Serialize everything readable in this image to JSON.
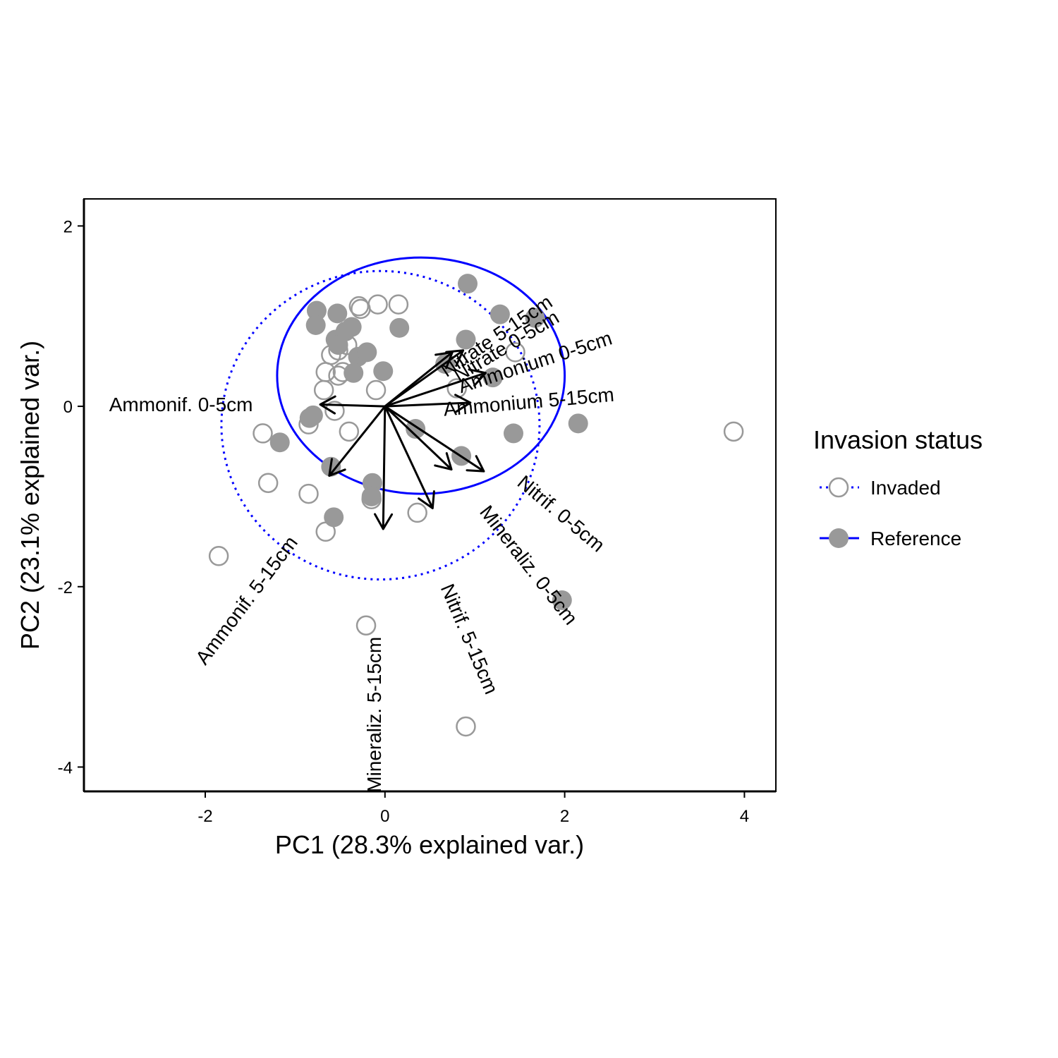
{
  "chart_data": {
    "type": "scatter",
    "subtype": "PCA biplot",
    "xlabel": "PC1 (28.3% explained var.)",
    "ylabel": "PC2 (23.1% explained var.)",
    "xlim": [
      -3.35,
      4.35
    ],
    "ylim": [
      -4.27,
      2.3
    ],
    "xticks": [
      -2,
      0,
      2,
      4
    ],
    "xtick_labels": [
      "-2",
      "0",
      "2",
      "4"
    ],
    "yticks": [
      -4,
      -2,
      0,
      2
    ],
    "ytick_labels": [
      "-4",
      "-2",
      "0",
      "2"
    ],
    "grid": false,
    "legend": {
      "title": "Invasion status",
      "placement": "right",
      "entries": [
        "Invaded",
        "Reference"
      ]
    },
    "series": [
      {
        "name": "Invaded",
        "marker": "open-circle",
        "color": "#999999",
        "ellipse_color": "#0000ff",
        "ellipse_line": "dotted",
        "ellipse": {
          "cx": -0.05,
          "cy": -0.21,
          "rx": 1.77,
          "ry": 1.71
        },
        "points": [
          [
            -0.29,
            1.11
          ],
          [
            -0.08,
            1.13
          ],
          [
            0.15,
            1.13
          ],
          [
            -0.27,
            1.08
          ],
          [
            -0.42,
            0.68
          ],
          [
            -0.6,
            0.57
          ],
          [
            -0.52,
            0.62
          ],
          [
            -0.47,
            0.38
          ],
          [
            -0.66,
            0.38
          ],
          [
            -0.52,
            0.34
          ],
          [
            -0.68,
            0.18
          ],
          [
            -0.1,
            0.18
          ],
          [
            -0.56,
            -0.05
          ],
          [
            -0.85,
            -0.2
          ],
          [
            -1.36,
            -0.3
          ],
          [
            -0.4,
            -0.28
          ],
          [
            -1.3,
            -0.85
          ],
          [
            -0.85,
            -0.97
          ],
          [
            -0.66,
            -1.39
          ],
          [
            -1.85,
            -1.66
          ],
          [
            -0.21,
            -2.43
          ],
          [
            0.36,
            -1.18
          ],
          [
            -0.15,
            -1.03
          ],
          [
            0.9,
            -3.55
          ],
          [
            0.8,
            0.2
          ],
          [
            1.45,
            0.6
          ],
          [
            3.88,
            -0.28
          ]
        ]
      },
      {
        "name": "Reference",
        "marker": "filled-circle",
        "color": "#999999",
        "ellipse_color": "#0000ff",
        "ellipse_line": "solid",
        "ellipse": {
          "cx": 0.4,
          "cy": 0.34,
          "rx": 1.6,
          "ry": 1.31
        },
        "points": [
          [
            0.92,
            1.36
          ],
          [
            1.28,
            1.02
          ],
          [
            1.67,
            0.98
          ],
          [
            -0.76,
            1.06
          ],
          [
            -0.77,
            0.9
          ],
          [
            -0.53,
            1.03
          ],
          [
            0.16,
            0.87
          ],
          [
            -0.37,
            0.88
          ],
          [
            -0.44,
            0.83
          ],
          [
            -0.55,
            0.74
          ],
          [
            -0.52,
            0.68
          ],
          [
            -0.3,
            0.55
          ],
          [
            -0.2,
            0.6
          ],
          [
            -0.35,
            0.37
          ],
          [
            -0.02,
            0.39
          ],
          [
            0.67,
            0.47
          ],
          [
            0.9,
            0.74
          ],
          [
            1.2,
            0.32
          ],
          [
            -0.84,
            -0.13
          ],
          [
            -0.8,
            -0.1
          ],
          [
            -1.17,
            -0.4
          ],
          [
            0.34,
            -0.25
          ],
          [
            0.85,
            -0.55
          ],
          [
            1.43,
            -0.3
          ],
          [
            2.15,
            -0.19
          ],
          [
            -0.6,
            -0.67
          ],
          [
            -0.14,
            -0.85
          ],
          [
            -0.15,
            -1.0
          ],
          [
            -0.57,
            -1.23
          ],
          [
            1.97,
            -2.15
          ]
        ]
      }
    ],
    "loadings": [
      {
        "label": "Nitrate 5-15cm",
        "x": 0.87,
        "y": 0.62,
        "label_x": 1.24,
        "label_y": 0.78,
        "label_angle": -34
      },
      {
        "label": "Nitrate 0-5cm",
        "x": 0.75,
        "y": 0.6,
        "label_x": 1.35,
        "label_y": 0.67,
        "label_angle": -31
      },
      {
        "label": "Ammonium 0-5cm",
        "x": 1.12,
        "y": 0.37,
        "label_x": 1.67,
        "label_y": 0.49,
        "label_angle": -18
      },
      {
        "label": "Ammonium 5-15cm",
        "x": 0.95,
        "y": 0.04,
        "label_x": 1.6,
        "label_y": 0.05,
        "label_angle": -5
      },
      {
        "label": "Ammonif. 0-5cm",
        "x": -0.72,
        "y": 0.02,
        "label_x": -2.27,
        "label_y": 0.02,
        "label_angle": 0
      },
      {
        "label": "Ammonif. 5-15cm",
        "x": -0.62,
        "y": -0.77,
        "label_x": -1.54,
        "label_y": -2.15,
        "label_angle": -53
      },
      {
        "label": "Mineraliz. 5-15cm",
        "x": -0.02,
        "y": -1.36,
        "label_x": -0.12,
        "label_y": -3.42,
        "label_angle": -90
      },
      {
        "label": "Nitrif. 5-15cm",
        "x": 0.53,
        "y": -1.13,
        "label_x": 0.94,
        "label_y": -2.58,
        "label_angle": 67
      },
      {
        "label": "Mineraliz. 0-5cm",
        "x": 1.1,
        "y": -0.72,
        "label_x": 1.6,
        "label_y": -1.76,
        "label_angle": 52
      },
      {
        "label": "Nitrif. 0-5cm",
        "x": 0.74,
        "y": -0.7,
        "label_x": 1.96,
        "label_y": -1.19,
        "label_angle": 40
      }
    ]
  }
}
